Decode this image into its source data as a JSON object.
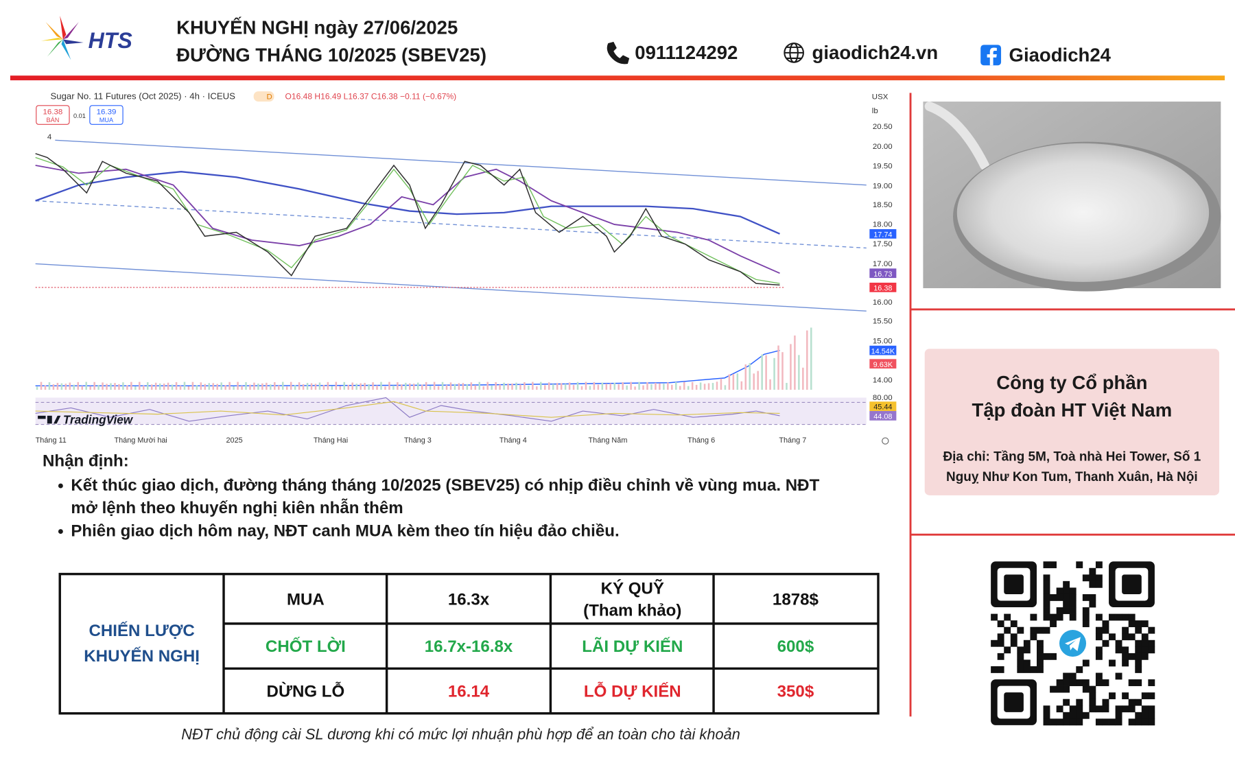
{
  "header": {
    "logo": "HTS",
    "title": "KHUYẾN NGHỊ ngày 27/06/2025",
    "subtitle": "ĐƯỜNG THÁNG 10/2025 (SBEV25)",
    "phone": "0911124292",
    "website": "giaodich24.vn",
    "facebook": "Giaodich24"
  },
  "chart": {
    "symbol": "Sugar No. 11 Futures (Oct 2025) · 4h · ICEUS",
    "interval_badge": "D",
    "ohlc": "O16.48 H16.49 L16.37 C16.38 −0.11 (−0.67%)",
    "sell_price": "16.38",
    "sell_label": "BÁN",
    "spread": "0.01",
    "buy_price": "16.39",
    "buy_label": "MUA",
    "indicator_count": "4",
    "currency": "USX",
    "unit": "lb",
    "price_ticks": [
      "20.50",
      "20.00",
      "19.50",
      "19.00",
      "18.50",
      "18.00",
      "17.50",
      "17.00",
      "16.00",
      "15.50",
      "15.00",
      "14.00",
      "80.00"
    ],
    "badges": [
      "17.74",
      "16.73",
      "16.38",
      "14.54K",
      "9.63K",
      "45.44",
      "44.08"
    ],
    "months": [
      "Tháng 11",
      "Tháng Mười hai",
      "2025",
      "Tháng Hai",
      "Tháng 3",
      "Tháng 4",
      "Tháng Năm",
      "Tháng 6",
      "Tháng 7"
    ],
    "brand": "TradingView"
  },
  "analysis": {
    "heading": "Nhận định:",
    "bullets": [
      {
        "lines": [
          "Kết thúc giao dịch, đường tháng tháng 10/2025 (SBEV25) có nhịp điều chỉnh về vùng mua. NĐT",
          "mở lệnh theo khuyến nghị kiên nhẫn thêm"
        ]
      },
      {
        "lines": [
          "Phiên giao dịch hôm nay, NĐT canh MUA kèm theo tín hiệu đảo chiều."
        ]
      }
    ]
  },
  "table": {
    "strategy": [
      "CHIẾN LƯỢC",
      "KHUYẾN NGHỊ"
    ],
    "rows": [
      [
        "MUA",
        "16.3x",
        [
          "KÝ QUỸ",
          "(Tham khảo)"
        ],
        "1878$"
      ],
      [
        "CHỐT LỜI",
        "16.7x-16.8x",
        "LÃI DỰ KIẾN",
        "600$"
      ],
      [
        "DỪNG LỖ",
        "16.14",
        "LỖ DỰ KIẾN",
        "350$"
      ]
    ]
  },
  "footnote": "NĐT chủ động cài SL dương khi có mức lợi nhuận phù hợp để an toàn cho tài khoản",
  "company": {
    "name": [
      "Công ty Cổ phần",
      "Tập đoàn HT Việt Nam"
    ],
    "address": [
      "Địa chỉ: Tầng 5M, Toà nhà Hei Tower, Số 1",
      "Nguỵ Như Kon Tum, Thanh Xuân, Hà Nội"
    ]
  }
}
